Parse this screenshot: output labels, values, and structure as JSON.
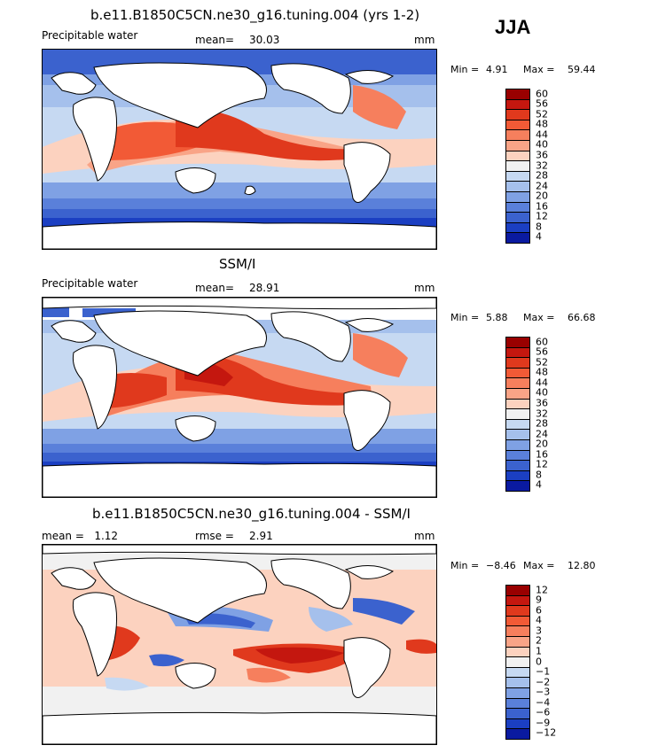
{
  "season": "JJA",
  "panels": [
    {
      "id": "model",
      "title": "b.e11.B1850C5CN.ne30_g16.tuning.004 (yrs 1-2)",
      "left_label": "Precipitable water",
      "stat_label": "mean=",
      "stat_value": "30.03",
      "units": "mm",
      "min_label": "Min =",
      "min_value": "4.91",
      "max_label": "Max =",
      "max_value": "59.44",
      "colors": [
        "#990000",
        "#c4170f",
        "#e0391d",
        "#f25a36",
        "#f67f5d",
        "#f9a487",
        "#fcd2bf",
        "#f1f1f1",
        "#c6d9f2",
        "#a5c0ec",
        "#7fa1e4",
        "#5a80da",
        "#3b62ce",
        "#1b3fc2",
        "#0a1aa0"
      ],
      "ticks": [
        "60",
        "56",
        "52",
        "48",
        "44",
        "40",
        "36",
        "32",
        "28",
        "24",
        "20",
        "16",
        "12",
        "8",
        "4"
      ]
    },
    {
      "id": "obs",
      "title": "SSM/I",
      "left_label": "Precipitable water",
      "stat_label": "mean=",
      "stat_value": "28.91",
      "units": "mm",
      "min_label": "Min =",
      "min_value": "5.88",
      "max_label": "Max =",
      "max_value": "66.68",
      "colors": [
        "#990000",
        "#c4170f",
        "#e0391d",
        "#f25a36",
        "#f67f5d",
        "#f9a487",
        "#fcd2bf",
        "#f1f1f1",
        "#c6d9f2",
        "#a5c0ec",
        "#7fa1e4",
        "#5a80da",
        "#3b62ce",
        "#1b3fc2",
        "#0a1aa0"
      ],
      "ticks": [
        "60",
        "56",
        "52",
        "48",
        "44",
        "40",
        "36",
        "32",
        "28",
        "24",
        "20",
        "16",
        "12",
        "8",
        "4"
      ]
    },
    {
      "id": "diff",
      "title": "b.e11.B1850C5CN.ne30_g16.tuning.004 - SSM/I",
      "left_label": "mean =   1.12",
      "stat_label": "rmse =",
      "stat_value": "2.91",
      "units": "mm",
      "min_label": "Min =",
      "min_value": "−8.46",
      "max_label": "Max =",
      "max_value": "12.80",
      "colors": [
        "#990000",
        "#c4170f",
        "#e0391d",
        "#f25a36",
        "#f67f5d",
        "#f9a487",
        "#fcd2bf",
        "#f1f1f1",
        "#c6d9f2",
        "#a5c0ec",
        "#7fa1e4",
        "#5a80da",
        "#3b62ce",
        "#1b3fc2",
        "#0a1aa0"
      ],
      "ticks": [
        "12",
        "9",
        "6",
        "4",
        "3",
        "2",
        "1",
        "0",
        "−1",
        "−2",
        "−3",
        "−4",
        "−6",
        "−9",
        "−12"
      ]
    }
  ],
  "colors": {
    "land": "#ffffff",
    "coast": "#000000",
    "deep_red": "#c4170f",
    "red": "#e0391d",
    "orange": "#f67f5d",
    "pink": "#fcd2bf",
    "light_blue": "#c6d9f2",
    "blue": "#7fa1e4",
    "dark_blue": "#1b3fc2",
    "navy": "#0a1aa0"
  }
}
